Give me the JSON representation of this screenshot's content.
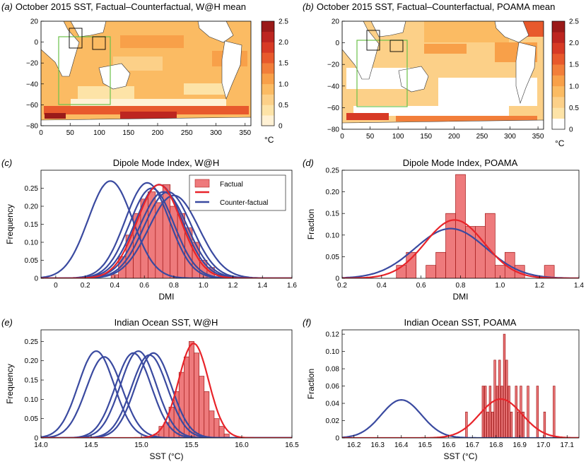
{
  "chart_data": [
    {
      "id": "a",
      "type": "heatmap",
      "panel_label": "(a)",
      "title": "October 2015 SST, Factual–Counterfactual, W@H mean",
      "xlim": [
        0,
        360
      ],
      "ylim": [
        -80,
        20
      ],
      "xticks": [
        "0",
        "50",
        "100",
        "150",
        "200",
        "250",
        "300",
        "350"
      ],
      "yticks": [
        "20",
        "0",
        "−20",
        "−40",
        "−60",
        "−80"
      ],
      "colorbar": {
        "ticks": [
          "2.5",
          "2.0",
          "1.5",
          "1.0",
          "0.5",
          "0"
        ],
        "unit": "°C",
        "levels": [
          0,
          0.25,
          0.5,
          0.75,
          1.0,
          1.25,
          1.5,
          1.75,
          2.0,
          2.25,
          2.5
        ],
        "colors": [
          "#fff1d4",
          "#fde3a7",
          "#fcd088",
          "#fbbb63",
          "#f8a049",
          "#f27e3a",
          "#e8592c",
          "#d73a25",
          "#bd2520",
          "#9a1a19"
        ]
      }
    },
    {
      "id": "b",
      "type": "heatmap",
      "panel_label": "(b)",
      "title": "October 2015 SST, Factual–Counterfactual, POAMA mean",
      "xlim": [
        0,
        360
      ],
      "ylim": [
        -80,
        20
      ],
      "xticks": [
        "0",
        "50",
        "100",
        "150",
        "200",
        "250",
        "300",
        "350"
      ],
      "yticks": [
        "20",
        "0",
        "−20",
        "−40",
        "−60",
        "−80"
      ],
      "colorbar": {
        "ticks": [
          "2.5",
          "2.0",
          "1.5",
          "1.0",
          "0.5",
          "0"
        ],
        "unit": "°C",
        "levels": [
          0,
          0.25,
          0.5,
          0.75,
          1.0,
          1.25,
          1.5,
          1.75,
          2.0,
          2.25,
          2.5
        ],
        "colors": [
          "#ffffff",
          "#fde3a7",
          "#fcd088",
          "#fbbb63",
          "#f8a049",
          "#f27e3a",
          "#e8592c",
          "#d73a25",
          "#bd2520",
          "#9a1a19"
        ]
      }
    },
    {
      "id": "c",
      "type": "bar",
      "panel_label": "(c)",
      "title": "Dipole Mode Index, W@H",
      "xlabel": "DMI",
      "ylabel": "Frequency",
      "xlim": [
        -0.1,
        1.6
      ],
      "ylim": [
        0,
        0.3
      ],
      "xticks": [
        "0",
        "0.2",
        "0.4",
        "0.6",
        "0.8",
        "1.0",
        "1.2",
        "1.4",
        "1.6"
      ],
      "yticks": [
        "0",
        "0.05",
        "0.10",
        "0.15",
        "0.20",
        "0.25"
      ],
      "legend": {
        "position": "top-right",
        "entries": [
          "Factual",
          "Counter-factual"
        ]
      },
      "bins": [
        {
          "x": 0.4,
          "y": 0.01
        },
        {
          "x": 0.45,
          "y": 0.06
        },
        {
          "x": 0.5,
          "y": 0.12
        },
        {
          "x": 0.55,
          "y": 0.18
        },
        {
          "x": 0.6,
          "y": 0.22
        },
        {
          "x": 0.65,
          "y": 0.24
        },
        {
          "x": 0.7,
          "y": 0.21
        },
        {
          "x": 0.75,
          "y": 0.26
        },
        {
          "x": 0.8,
          "y": 0.2
        },
        {
          "x": 0.85,
          "y": 0.18
        },
        {
          "x": 0.9,
          "y": 0.14
        },
        {
          "x": 0.95,
          "y": 0.1
        },
        {
          "x": 1.0,
          "y": 0.05
        },
        {
          "x": 1.05,
          "y": 0.03
        }
      ],
      "bin_width": 0.05,
      "factual_curves": [
        {
          "mu": 0.7,
          "sd": 0.15,
          "peak": 0.26
        }
      ],
      "counterfactual_curves": [
        {
          "mu": 0.37,
          "sd": 0.15,
          "peak": 0.27
        },
        {
          "mu": 0.62,
          "sd": 0.15,
          "peak": 0.265
        },
        {
          "mu": 0.65,
          "sd": 0.15,
          "peak": 0.25
        },
        {
          "mu": 0.7,
          "sd": 0.16,
          "peak": 0.26
        },
        {
          "mu": 0.73,
          "sd": 0.16,
          "peak": 0.24
        },
        {
          "mu": 0.76,
          "sd": 0.16,
          "peak": 0.24
        },
        {
          "mu": 0.8,
          "sd": 0.17,
          "peak": 0.23
        }
      ]
    },
    {
      "id": "d",
      "type": "bar",
      "panel_label": "(d)",
      "title": "Dipole Mode Index, POAMA",
      "xlabel": "DMI",
      "ylabel": "Fraction",
      "xlim": [
        0.2,
        1.4
      ],
      "ylim": [
        0,
        0.25
      ],
      "xticks": [
        "0.2",
        "0.4",
        "0.6",
        "0.8",
        "1.0",
        "1.2",
        "1.4"
      ],
      "yticks": [
        "0",
        "0.05",
        "0.10",
        "0.15",
        "0.20",
        "0.25"
      ],
      "bins": [
        {
          "x": 0.5,
          "y": 0.03
        },
        {
          "x": 0.55,
          "y": 0.06
        },
        {
          "x": 0.65,
          "y": 0.03
        },
        {
          "x": 0.7,
          "y": 0.06
        },
        {
          "x": 0.75,
          "y": 0.15
        },
        {
          "x": 0.8,
          "y": 0.24
        },
        {
          "x": 0.85,
          "y": 0.12
        },
        {
          "x": 0.9,
          "y": 0.12
        },
        {
          "x": 0.95,
          "y": 0.15
        },
        {
          "x": 1.0,
          "y": 0.03
        },
        {
          "x": 1.05,
          "y": 0.06
        },
        {
          "x": 1.1,
          "y": 0.03
        },
        {
          "x": 1.25,
          "y": 0.03
        }
      ],
      "bin_width": 0.05,
      "factual_curves": [
        {
          "mu": 0.77,
          "sd": 0.15,
          "peak": 0.135
        }
      ],
      "counterfactual_curves": [
        {
          "mu": 0.75,
          "sd": 0.18,
          "peak": 0.115
        }
      ]
    },
    {
      "id": "e",
      "type": "bar",
      "panel_label": "(e)",
      "title": "Indian Ocean SST, W@H",
      "xlabel": "SST (°C)",
      "ylabel": "Frequency",
      "xlim": [
        14.0,
        16.5
      ],
      "ylim": [
        0,
        0.28
      ],
      "xticks": [
        "14.0",
        "14.5",
        "15.0",
        "15.5",
        "16.0",
        "16.5"
      ],
      "yticks": [
        "0",
        "0.05",
        "0.10",
        "0.15",
        "0.20",
        "0.25"
      ],
      "bins": [
        {
          "x": 15.15,
          "y": 0.01
        },
        {
          "x": 15.2,
          "y": 0.03
        },
        {
          "x": 15.25,
          "y": 0.04
        },
        {
          "x": 15.3,
          "y": 0.08
        },
        {
          "x": 15.35,
          "y": 0.12
        },
        {
          "x": 15.4,
          "y": 0.17
        },
        {
          "x": 15.45,
          "y": 0.21
        },
        {
          "x": 15.5,
          "y": 0.25
        },
        {
          "x": 15.55,
          "y": 0.22
        },
        {
          "x": 15.6,
          "y": 0.16
        },
        {
          "x": 15.65,
          "y": 0.12
        },
        {
          "x": 15.7,
          "y": 0.07
        },
        {
          "x": 15.75,
          "y": 0.05
        },
        {
          "x": 15.8,
          "y": 0.03
        },
        {
          "x": 15.85,
          "y": 0.01
        }
      ],
      "bin_width": 0.05,
      "factual_curves": [
        {
          "mu": 15.52,
          "sd": 0.15,
          "peak": 0.245
        }
      ],
      "counterfactual_curves": [
        {
          "mu": 14.55,
          "sd": 0.18,
          "peak": 0.225
        },
        {
          "mu": 14.63,
          "sd": 0.18,
          "peak": 0.21
        },
        {
          "mu": 14.92,
          "sd": 0.18,
          "peak": 0.22
        },
        {
          "mu": 14.97,
          "sd": 0.18,
          "peak": 0.225
        },
        {
          "mu": 15.08,
          "sd": 0.18,
          "peak": 0.215
        },
        {
          "mu": 15.12,
          "sd": 0.18,
          "peak": 0.22
        }
      ]
    },
    {
      "id": "f",
      "type": "bar",
      "panel_label": "(f)",
      "title": "Indian Ocean SST, POAMA",
      "xlabel": "SST (°C)",
      "ylabel": "Fraction",
      "xlim": [
        16.15,
        17.15
      ],
      "ylim": [
        0,
        0.125
      ],
      "xticks": [
        "16.2",
        "16.3",
        "16.4",
        "16.5",
        "16.6",
        "16.7",
        "16.8",
        "16.9",
        "17.0",
        "17.1"
      ],
      "yticks": [
        "0",
        "0.02",
        "0.04",
        "0.06",
        "0.08",
        "0.10",
        "0.12"
      ],
      "bins": [
        {
          "x": 16.675,
          "y": 0.03
        },
        {
          "x": 16.745,
          "y": 0.06
        },
        {
          "x": 16.755,
          "y": 0.06
        },
        {
          "x": 16.765,
          "y": 0.03
        },
        {
          "x": 16.775,
          "y": 0.06
        },
        {
          "x": 16.785,
          "y": 0.03
        },
        {
          "x": 16.795,
          "y": 0.09
        },
        {
          "x": 16.805,
          "y": 0.06
        },
        {
          "x": 16.815,
          "y": 0.09
        },
        {
          "x": 16.825,
          "y": 0.06
        },
        {
          "x": 16.835,
          "y": 0.12
        },
        {
          "x": 16.845,
          "y": 0.09
        },
        {
          "x": 16.855,
          "y": 0.06
        },
        {
          "x": 16.865,
          "y": 0.03
        },
        {
          "x": 16.885,
          "y": 0.06
        },
        {
          "x": 16.895,
          "y": 0.03
        },
        {
          "x": 16.905,
          "y": 0.06
        },
        {
          "x": 16.915,
          "y": 0.03
        },
        {
          "x": 16.935,
          "y": 0.06
        },
        {
          "x": 16.975,
          "y": 0.06
        },
        {
          "x": 17.005,
          "y": 0.03
        },
        {
          "x": 17.045,
          "y": 0.06
        }
      ],
      "bin_width": 0.008,
      "factual_curves": [
        {
          "mu": 16.82,
          "sd": 0.09,
          "peak": 0.045
        }
      ],
      "counterfactual_curves": [
        {
          "mu": 16.4,
          "sd": 0.085,
          "peak": 0.044
        }
      ]
    }
  ],
  "colors": {
    "factual": "#e8242a",
    "counterfactual": "#3a4aa0",
    "bar_fill": "#ee7a7c",
    "land": "#ffffff",
    "box_green": "#6cc24a"
  }
}
